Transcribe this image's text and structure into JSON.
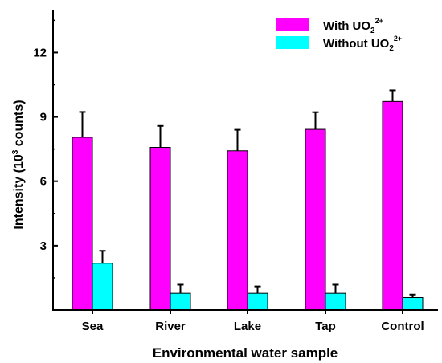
{
  "chart_data": {
    "type": "bar",
    "xlabel": "Environmental water sample",
    "ylabel": {
      "main": "Intensity (10",
      "sup": "3",
      "tail": " counts)"
    },
    "categories": [
      "Sea",
      "River",
      "Lake",
      "Tap",
      "Control"
    ],
    "series": [
      {
        "name": {
          "main": "With UO",
          "sub": "2",
          "sup": "2+"
        },
        "color": "#ff00ff",
        "values": [
          8.05,
          7.58,
          7.42,
          8.42,
          9.72
        ],
        "errors": [
          1.18,
          1.0,
          0.98,
          0.8,
          0.52
        ]
      },
      {
        "name": {
          "main": "Without UO",
          "sub": "2",
          "sup": "2+"
        },
        "color": "#00ffff",
        "values": [
          2.18,
          0.78,
          0.78,
          0.78,
          0.58
        ],
        "errors": [
          0.58,
          0.4,
          0.32,
          0.4,
          0.14
        ]
      }
    ],
    "ylim": [
      0,
      14
    ],
    "yticks": [
      3,
      6,
      9,
      12
    ],
    "ytick_labels": [
      "3",
      "6",
      "9",
      "12"
    ],
    "grid": false,
    "legend": "top-right"
  }
}
